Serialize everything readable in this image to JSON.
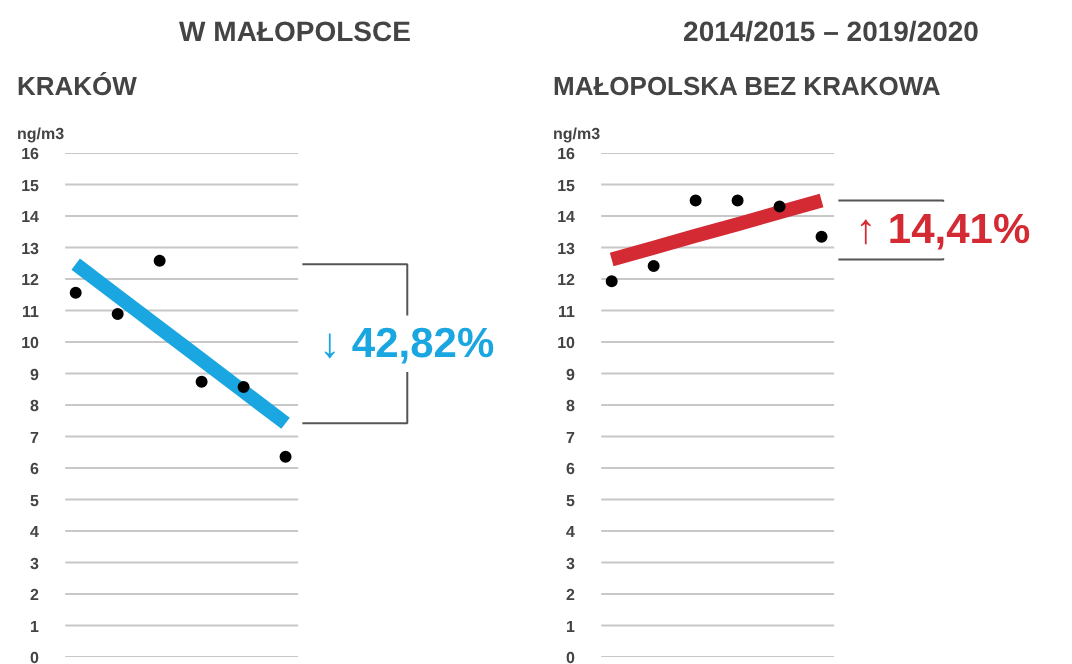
{
  "chart_data": [
    {
      "type": "scatter",
      "title": "KRAKÓW",
      "ylabel": "ng/m3",
      "annotations": [
        "W MAŁOPOLSCE",
        "↓ 42,82%"
      ],
      "categories": [
        null,
        null,
        null,
        null,
        null,
        null
      ],
      "ylim": [
        0,
        16
      ],
      "yticks": [
        0,
        1,
        2,
        3,
        4,
        5,
        6,
        7,
        8,
        9,
        10,
        11,
        12,
        13,
        14,
        15,
        16
      ],
      "grid": "y",
      "tick_labels": "y",
      "series": [
        {
          "color": "#000000",
          "marker": "circle",
          "values": [
            11.56,
            10.89,
            12.58,
            8.74,
            8.57,
            6.36
          ]
        },
        {
          "type": "line",
          "marker": "none",
          "color": "#1aa6e0",
          "values": [
            12.47,
            11.46,
            10.45,
            9.44,
            8.43,
            7.42
          ]
        }
      ]
    },
    {
      "type": "scatter",
      "title": "MAŁOPOLSKA BEZ KRAKOWA",
      "ylabel": "ng/m3",
      "annotations": [
        "2014/2015 – 2019/2020",
        "↑ 14,41%"
      ],
      "categories": [
        null,
        null,
        null,
        null,
        null,
        null
      ],
      "ylim": [
        0,
        16
      ],
      "yticks": [
        0,
        1,
        2,
        3,
        4,
        5,
        6,
        7,
        8,
        9,
        10,
        11,
        12,
        13,
        14,
        15,
        16
      ],
      "grid": "y",
      "tick_labels": "y",
      "series": [
        {
          "color": "#000000",
          "marker": "circle",
          "values": [
            11.93,
            12.41,
            14.49,
            14.49,
            14.3,
            13.34
          ]
        },
        {
          "type": "line",
          "marker": "none",
          "color": "#d42a34",
          "values": [
            12.62,
            12.99,
            13.37,
            13.74,
            14.12,
            14.49
          ]
        }
      ]
    }
  ]
}
